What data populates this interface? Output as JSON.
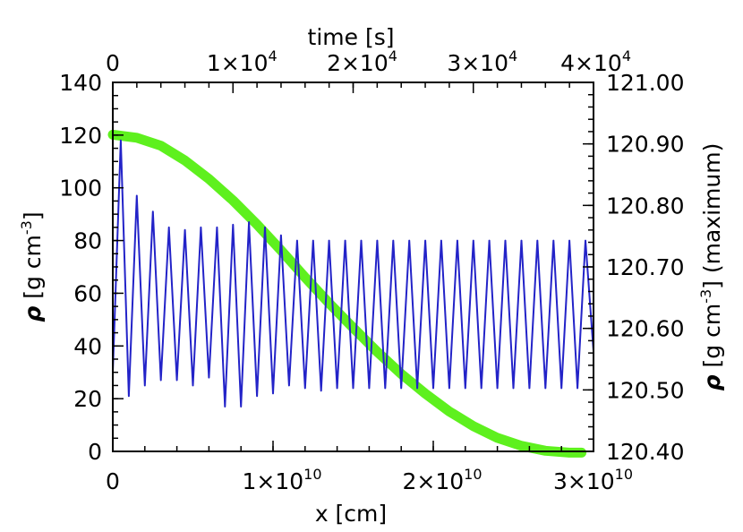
{
  "chart_data": {
    "type": "line",
    "title": "",
    "grid": false,
    "axes": {
      "bottom": {
        "label_plain": "x [cm]",
        "label_main": "x [cm]",
        "range": [
          0,
          30000000000
        ],
        "ticks": [
          {
            "value": 0,
            "label": "0",
            "mant": "",
            "exp": ""
          },
          {
            "value": 10000000000,
            "label": "1×10^10",
            "mant": "1×10",
            "exp": "10"
          },
          {
            "value": 20000000000,
            "label": "2×10^10",
            "mant": "2×10",
            "exp": "10"
          },
          {
            "value": 30000000000,
            "label": "3×10^10",
            "mant": "3×10",
            "exp": "10"
          }
        ]
      },
      "top": {
        "label_plain": "time [s]",
        "label_main": "time [s]",
        "range": [
          0,
          40000
        ],
        "ticks": [
          {
            "value": 0,
            "label": "0",
            "mant": "",
            "exp": ""
          },
          {
            "value": 10000,
            "label": "1×10^4",
            "mant": "1×10",
            "exp": "4"
          },
          {
            "value": 20000,
            "label": "2×10^4",
            "mant": "2×10",
            "exp": "4"
          },
          {
            "value": 30000,
            "label": "3×10^4",
            "mant": "3×10",
            "exp": "4"
          },
          {
            "value": 40000,
            "label": "4×10^4",
            "mant": "4×10",
            "exp": "4"
          }
        ]
      },
      "left": {
        "label_plain": "ρ [g cm^-3]",
        "label_rho": "ρ",
        "label_main": " [g cm",
        "label_exp": "-3",
        "label_tail": "]",
        "range": [
          0,
          140
        ],
        "ticks": [
          {
            "value": 0,
            "label": "0"
          },
          {
            "value": 20,
            "label": "20"
          },
          {
            "value": 40,
            "label": "40"
          },
          {
            "value": 60,
            "label": "60"
          },
          {
            "value": 80,
            "label": "80"
          },
          {
            "value": 100,
            "label": "100"
          },
          {
            "value": 120,
            "label": "120"
          },
          {
            "value": 140,
            "label": "140"
          }
        ]
      },
      "right": {
        "label_plain": "ρ [g cm^-3] (maximum)",
        "label_rho": "ρ",
        "label_main": " [g cm",
        "label_exp": "-3",
        "label_tail": "] (maximum)",
        "range": [
          120.4,
          121.0
        ],
        "ticks": [
          {
            "value": 120.4,
            "label": "120.40"
          },
          {
            "value": 120.5,
            "label": "120.50"
          },
          {
            "value": 120.6,
            "label": "120.60"
          },
          {
            "value": 120.7,
            "label": "120.70"
          },
          {
            "value": 120.8,
            "label": "120.80"
          },
          {
            "value": 120.9,
            "label": "120.90"
          },
          {
            "value": 121.0,
            "label": "121.00"
          }
        ]
      }
    },
    "series": [
      {
        "axes": "bottom-left",
        "color": "#2323c8",
        "x": [
          0,
          500000000.0,
          1000000000.0,
          1500000000.0,
          2000000000.0,
          2500000000.0,
          3000000000.0,
          3500000000.0,
          4000000000.0,
          4500000000.0,
          5000000000.0,
          5500000000.0,
          6000000000.0,
          6500000000.0,
          7000000000.0,
          7500000000.0,
          8000000000.0,
          8500000000.0,
          9000000000.0,
          9500000000.0,
          10000000000.0,
          10500000000.0,
          11000000000.0,
          11500000000.0,
          12000000000.0,
          12500000000.0,
          13000000000.0,
          13500000000.0,
          14000000000.0,
          14500000000.0,
          15000000000.0,
          15500000000.0,
          16000000000.0,
          16500000000.0,
          17000000000.0,
          17500000000.0,
          18000000000.0,
          18500000000.0,
          19000000000.0,
          19500000000.0,
          20000000000.0,
          20500000000.0,
          21000000000.0,
          21500000000.0,
          22000000000.0,
          22500000000.0,
          23000000000.0,
          23500000000.0,
          24000000000.0,
          24500000000.0,
          25000000000.0,
          25500000000.0,
          26000000000.0,
          26500000000.0,
          27000000000.0,
          27500000000.0,
          28000000000.0,
          28500000000.0,
          29000000000.0,
          29500000000.0,
          30000000000.0
        ],
        "y": [
          30,
          118,
          21,
          97,
          25,
          91,
          27,
          85,
          27,
          84,
          25,
          85,
          28,
          85,
          17,
          86,
          17,
          87,
          21,
          85,
          22,
          82,
          25,
          80,
          24,
          80,
          23,
          80,
          24,
          80,
          24,
          80,
          24,
          80,
          24,
          80,
          24,
          80,
          24,
          80,
          24,
          80,
          24,
          80,
          24,
          80,
          24,
          80,
          24,
          80,
          24,
          80,
          24,
          80,
          24,
          80,
          24,
          80,
          24,
          80,
          38
        ]
      },
      {
        "axes": "top-right",
        "color": "#5ef01e",
        "x": [
          0,
          2000,
          4000,
          6000,
          8000,
          10000,
          12000,
          14000,
          16000,
          18000,
          20000,
          22000,
          24000,
          26000,
          28000,
          30000,
          32000,
          34000,
          36000,
          38000,
          39000
        ],
        "y": [
          120.915,
          120.91,
          120.897,
          120.873,
          120.843,
          120.808,
          120.769,
          120.727,
          120.683,
          120.641,
          120.601,
          120.562,
          120.526,
          120.494,
          120.465,
          120.441,
          120.422,
          120.409,
          120.401,
          120.398,
          120.398
        ]
      }
    ]
  }
}
